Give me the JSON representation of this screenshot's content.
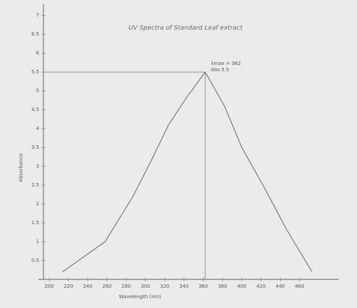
{
  "chart_data": {
    "type": "line",
    "title": "UV Spectra of Standard Leaf extract",
    "x_label": "Wavelength (nm)",
    "y_label": "Absorbance",
    "x": [
      214,
      258,
      287,
      305,
      324,
      342,
      362,
      382,
      400,
      422,
      447,
      473
    ],
    "series": [
      {
        "name": "Absorbance",
        "color": "#7a7a7a",
        "values": [
          0.2,
          1.0,
          2.2,
          3.1,
          4.1,
          4.8,
          5.5,
          4.6,
          3.5,
          2.5,
          1.3,
          0.2
        ]
      }
    ],
    "xlim": [
      194,
      500
    ],
    "ylim": [
      0,
      7.3
    ],
    "xticks": [
      200,
      220,
      240,
      260,
      280,
      300,
      320,
      340,
      360,
      380,
      400,
      420,
      440,
      460
    ],
    "yticks": [
      0.5,
      1,
      1.5,
      2,
      2.5,
      3,
      3.5,
      4,
      4.5,
      5,
      5.5,
      6,
      6.5,
      7
    ],
    "peak": {
      "x": 362,
      "y": 5.5,
      "label_x": "λmax = 362",
      "label_y": "Abs 5.5"
    }
  }
}
